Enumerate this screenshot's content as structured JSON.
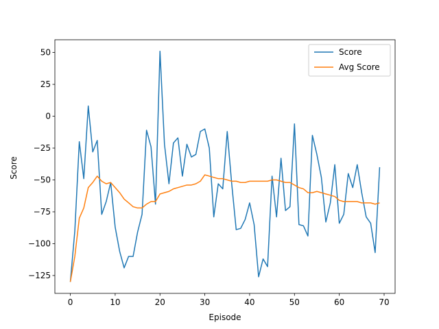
{
  "chart_data": {
    "type": "line",
    "title": "",
    "xlabel": "Episode",
    "ylabel": "Score",
    "xlim": [
      -3.45,
      72.45
    ],
    "ylim": [
      -139,
      60
    ],
    "xticks": [
      0,
      10,
      20,
      30,
      40,
      50,
      60,
      70
    ],
    "yticks": [
      -125,
      -100,
      -75,
      -50,
      -25,
      0,
      25,
      50
    ],
    "grid": false,
    "legend_position": "upper-right",
    "series": [
      {
        "name": "Score",
        "color": "#1f77b4",
        "values": [
          -130,
          -90,
          -20,
          -49,
          8,
          -28,
          -19,
          -77,
          -67,
          -52,
          -87,
          -106,
          -119,
          -110,
          -110,
          -91,
          -77,
          -11,
          -24,
          -69,
          51,
          -22,
          -53,
          -21,
          -17,
          -47,
          -22,
          -32,
          -30,
          -12,
          -10,
          -25,
          -79,
          -53,
          -57,
          -12,
          -53,
          -89,
          -88,
          -81,
          -68,
          -85,
          -126,
          -112,
          -118,
          -47,
          -79,
          -33,
          -74,
          -71,
          -6,
          -85,
          -86,
          -94,
          -15,
          -30,
          -48,
          -83,
          -68,
          -38,
          -84,
          -77,
          -45,
          -56,
          -38,
          -60,
          -79,
          -84,
          -107,
          -40
        ]
      },
      {
        "name": "Avg Score",
        "color": "#ff7f0e",
        "values": [
          -130,
          -110,
          -80,
          -72,
          -56,
          -52,
          -47,
          -51,
          -53,
          -52,
          -56,
          -60,
          -65,
          -68,
          -71,
          -72,
          -72,
          -69,
          -67,
          -67,
          -61,
          -60,
          -59,
          -57,
          -56,
          -55,
          -54,
          -54,
          -53,
          -51,
          -46,
          -47,
          -48,
          -49,
          -49,
          -50,
          -51,
          -51,
          -52,
          -52,
          -51,
          -51,
          -51,
          -51,
          -51,
          -50,
          -50,
          -51,
          -52,
          -52,
          -54,
          -56,
          -57,
          -60,
          -60,
          -59,
          -60,
          -61,
          -62,
          -63,
          -66,
          -67,
          -67,
          -67,
          -67,
          -68,
          -68,
          -68,
          -69,
          -68
        ]
      }
    ]
  }
}
